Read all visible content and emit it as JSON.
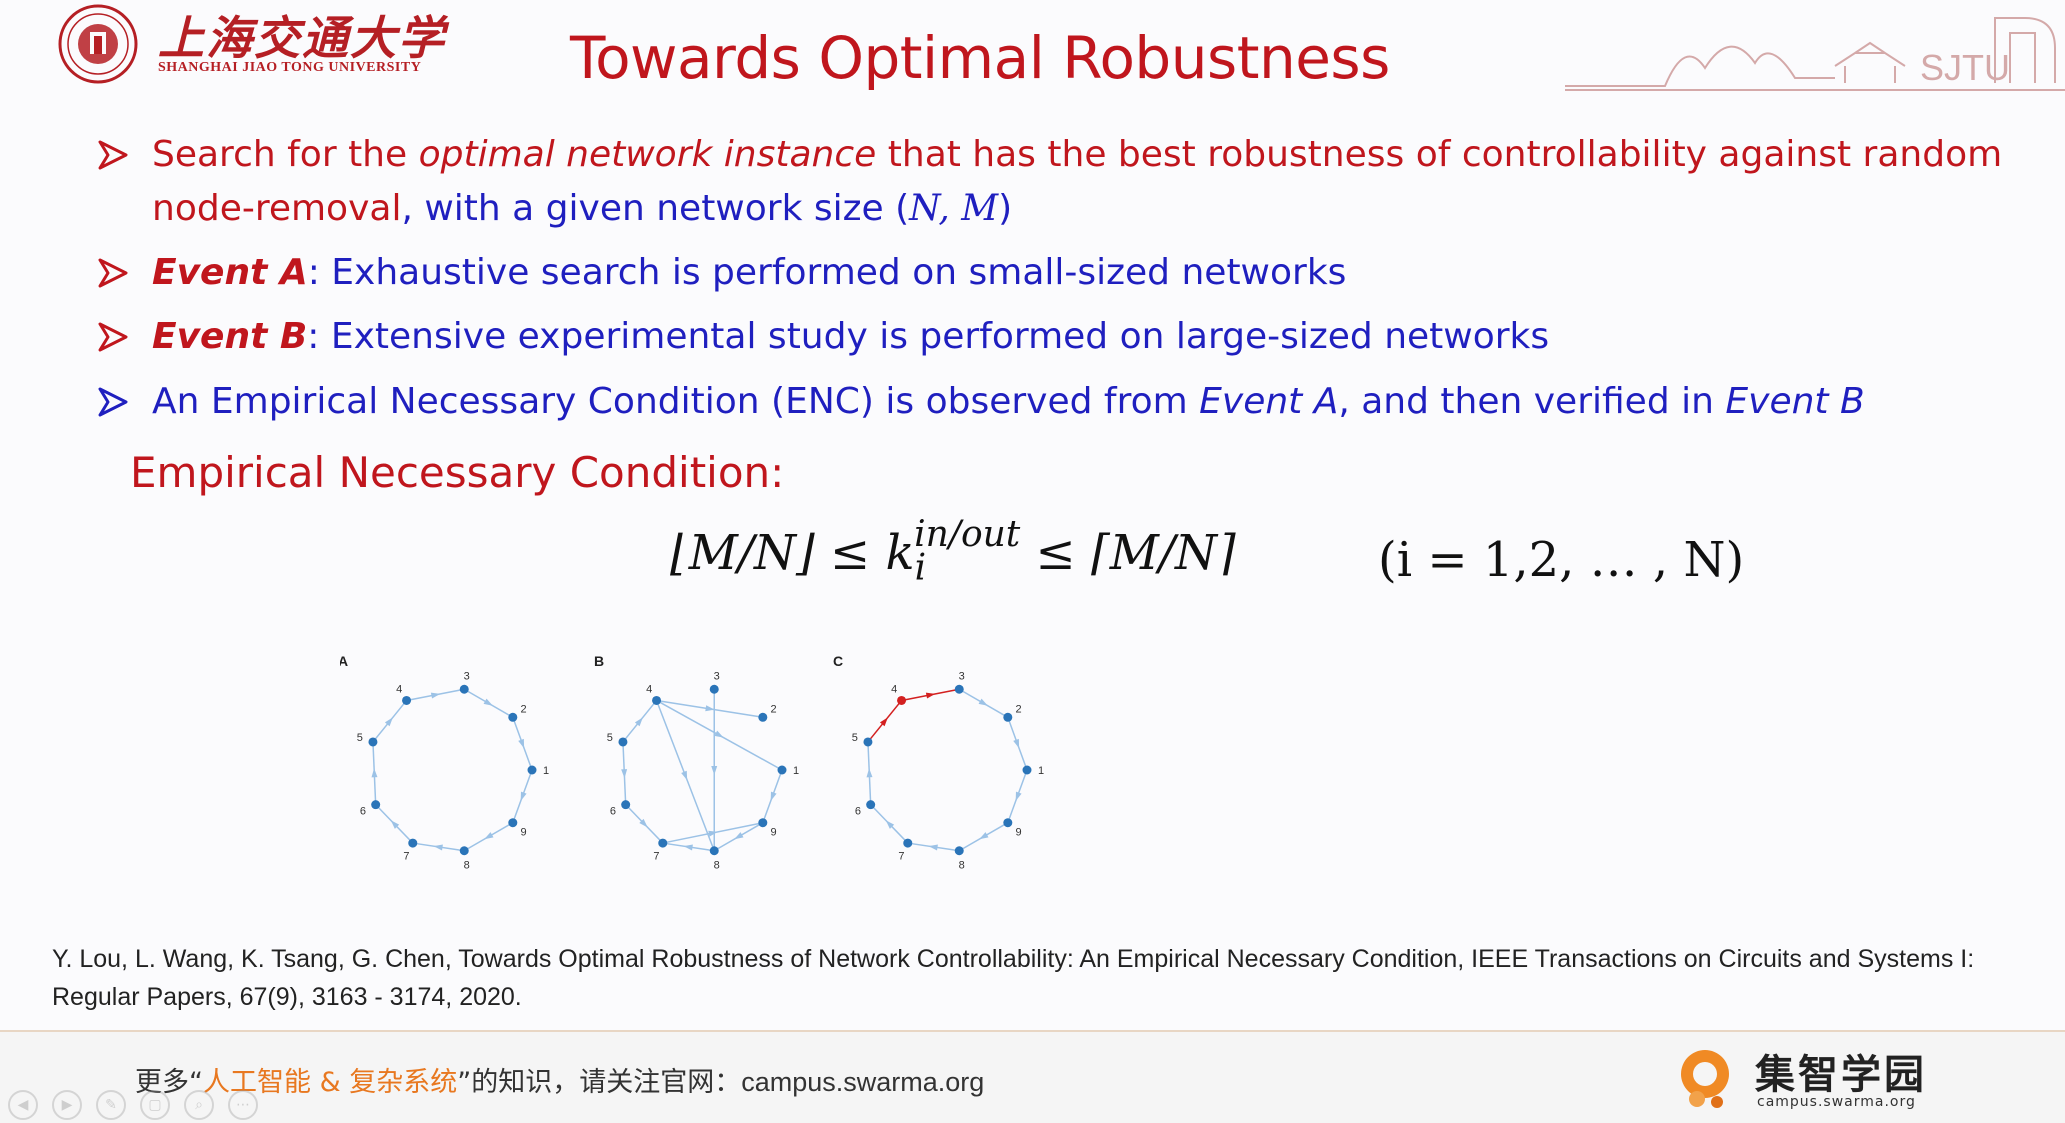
{
  "header": {
    "university_cn": "上海交通大学",
    "university_en": "SHANGHAI JIAO TONG UNIVERSITY",
    "title": "Towards Optimal Robustness",
    "skyline_text": "SJTU"
  },
  "bullets": [
    {
      "line1_red_a": "Search for the ",
      "line1_red_italic": "optimal network instance",
      "line1_red_b": " that has the best robustness of controllability against random",
      "line2_red": "node-removal",
      "line2_blue": ", with a given network size (",
      "line2_math": "N, M",
      "line2_end": ")"
    },
    {
      "label": "Event A",
      "text": ": Exhaustive search is performed on small-sized networks"
    },
    {
      "label": "Event B",
      "text": ": Extensive experimental study is performed on large-sized networks"
    },
    {
      "text_a": "An Empirical Necessary Condition (ENC) is observed from ",
      "event_a": "Event A",
      "text_b": ", and then verified in ",
      "event_b": "Event B"
    }
  ],
  "enc_heading": "Empirical Necessary Condition:",
  "formula": {
    "left": "⌊M/N⌋ ≤ k",
    "sup": "in/out",
    "sub": "i",
    "right": " ≤ ⌈M/N⌉",
    "index": "(i = 1,2, … , N)"
  },
  "graphs": {
    "panel_labels": [
      "A",
      "B",
      "C"
    ],
    "node_labels": [
      "1",
      "2",
      "3",
      "4",
      "5",
      "6",
      "7",
      "8",
      "9"
    ]
  },
  "citation": "Y. Lou, L. Wang, K. Tsang,  G. Chen, Towards Optimal Robustness of Network Controllability: An Empirical Necessary Condition,  IEEE Transactions on Circuits and Systems I: Regular Papers, 67(9),  3163 - 3174, 2020.",
  "footer": {
    "text_a": "更多“",
    "highlight": "人工智能 & 复杂系统",
    "text_b": "”的知识，请关注官网：",
    "url": "campus.swarma.org",
    "brand_cn": "集智学园",
    "brand_url": "campus.swarma.org"
  },
  "colors": {
    "title_red": "#c0161d",
    "body_blue": "#1f1fbf",
    "node_blue": "#2a74b8",
    "edge_blue": "#9cc2e6",
    "removed_red": "#d32020",
    "footer_orange": "#e87820"
  }
}
